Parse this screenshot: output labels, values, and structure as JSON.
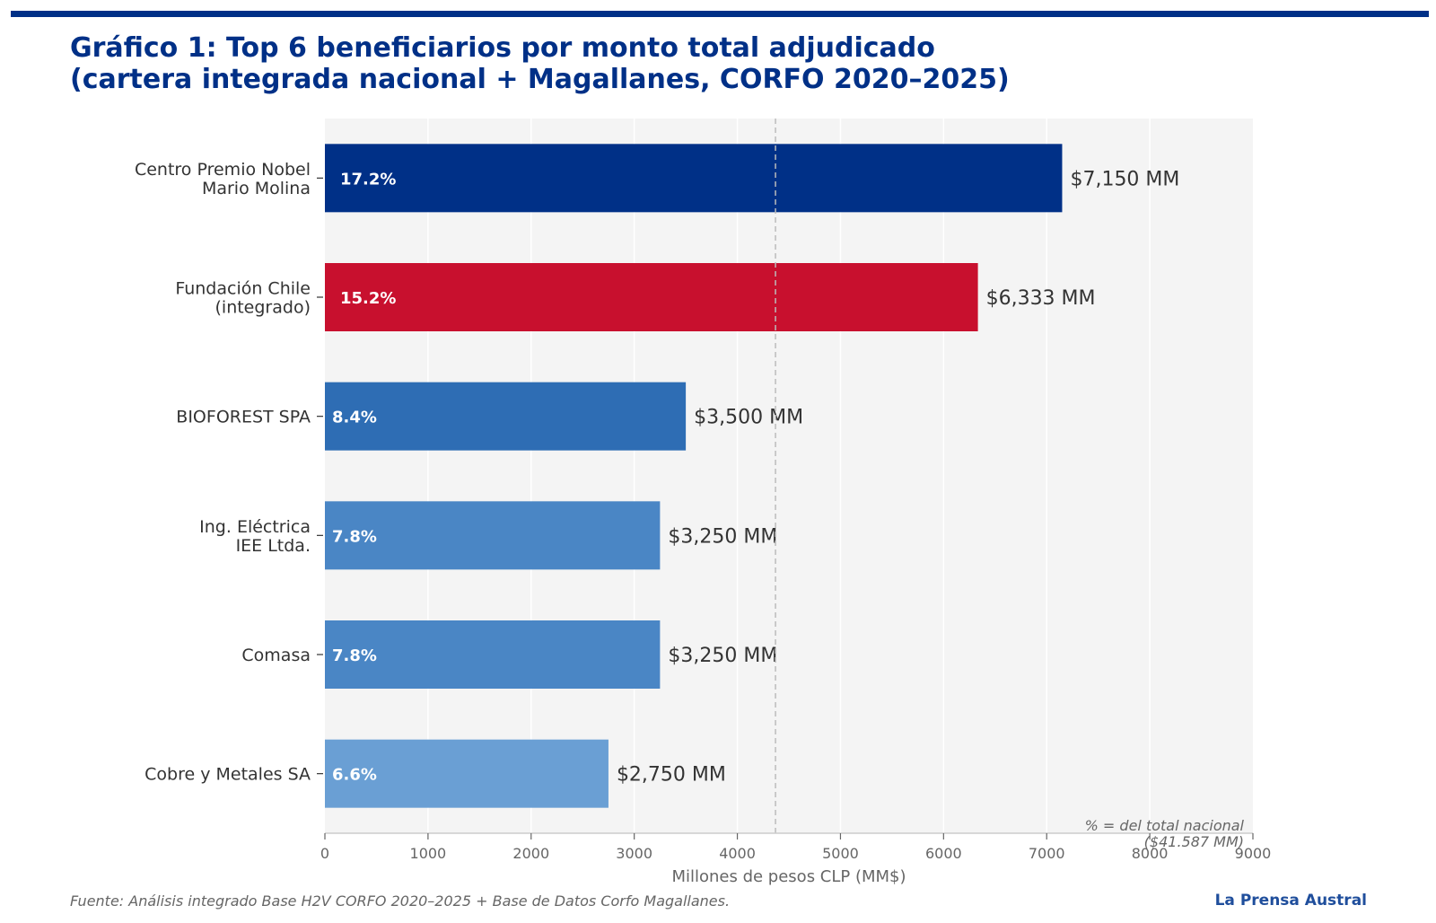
{
  "header": {
    "title_line1": "Gráfico 1: Top 6 beneficiarios por monto total adjudicado",
    "title_line2": "(cartera integrada nacional + Magallanes, CORFO 2020–2025)"
  },
  "colors": {
    "brand": "#003087",
    "accent_red": "#c8102e",
    "plot_bg": "#f4f4f4"
  },
  "chart_data": {
    "type": "bar",
    "orientation": "horizontal",
    "title": "Gráfico 1: Top 6 beneficiarios por monto total adjudicado (cartera integrada nacional + Magallanes, CORFO 2020–2025)",
    "xlabel": "Millones de pesos CLP (MM$)",
    "xlim": [
      0,
      9000
    ],
    "xticks": [
      0,
      1000,
      2000,
      3000,
      4000,
      5000,
      6000,
      7000,
      8000,
      9000
    ],
    "grid": "vertical",
    "reference_line_value": 4370,
    "categories": [
      [
        "Centro Premio Nobel",
        "Mario Molina"
      ],
      [
        "Fundación Chile",
        "(integrado)"
      ],
      [
        "BIOFOREST SPA"
      ],
      [
        "Ing. Eléctrica",
        "IEE Ltda."
      ],
      [
        "Comasa"
      ],
      [
        "Cobre y Metales SA"
      ]
    ],
    "values": [
      7150,
      6333,
      3500,
      3250,
      3250,
      2750
    ],
    "value_labels": [
      "$7,150 MM",
      "$6,333 MM",
      "$3,500 MM",
      "$3,250 MM",
      "$3,250 MM",
      "$2,750 MM"
    ],
    "pct_labels": [
      "17.2%",
      "15.2%",
      "8.4%",
      "7.8%",
      "7.8%",
      "6.6%"
    ],
    "bar_colors": [
      "#003087",
      "#c8102e",
      "#2e6db4",
      "#4a86c5",
      "#4a86c5",
      "#6a9fd4"
    ],
    "note": [
      "% = del total nacional",
      "($41.587 MM)"
    ]
  },
  "footer": {
    "source": "Fuente: Análisis integrado Base H2V CORFO 2020–2025 + Base de Datos Corfo Magallanes.",
    "brand": "La Prensa Austral"
  }
}
